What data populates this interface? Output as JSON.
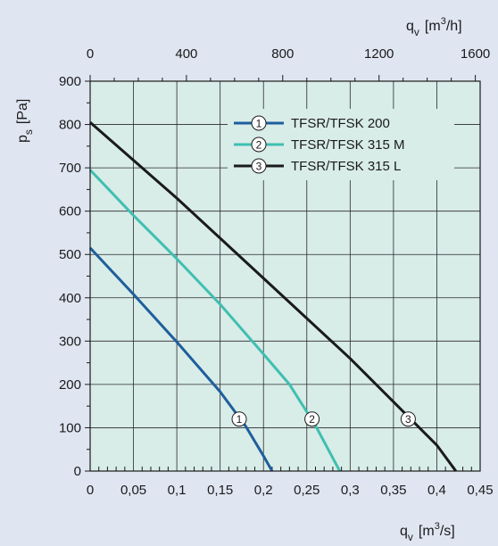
{
  "chart_data": {
    "type": "line",
    "x_bottom": {
      "label": "q",
      "label_sub": "v",
      "unit": "[m",
      "unit_sup": "3",
      "unit_tail": "/s]",
      "ticks": [
        0,
        0.05,
        0.1,
        0.15,
        0.2,
        0.25,
        0.3,
        0.35,
        0.4,
        0.45
      ],
      "tick_labels": [
        "0",
        "0,05",
        "0,1",
        "0,15",
        "0,2",
        "0,25",
        "0,3",
        "0,35",
        "0,4",
        "0,45"
      ],
      "range": [
        0,
        0.45
      ]
    },
    "x_top": {
      "label": "q",
      "label_sub": "v",
      "unit": "[m",
      "unit_sup": "3",
      "unit_tail": "/h]",
      "ticks": [
        0,
        400,
        800,
        1200,
        1600
      ],
      "tick_labels": [
        "0",
        "400",
        "800",
        "1200",
        "1600"
      ],
      "range": [
        0,
        1620
      ]
    },
    "y": {
      "label": "p",
      "label_sub": "s",
      "unit": "[Pa]",
      "ticks": [
        0,
        100,
        200,
        300,
        400,
        500,
        600,
        700,
        800,
        900
      ],
      "tick_labels": [
        "0",
        "100",
        "200",
        "300",
        "400",
        "500",
        "600",
        "700",
        "800",
        "900"
      ],
      "range": [
        0,
        900
      ]
    },
    "grid": true,
    "legend_position": "top-right",
    "series": [
      {
        "id": "1",
        "name": "TFSR/TFSK 200",
        "color": "#1f5e9c",
        "marker_label": "1",
        "marker_at": [
          0.172,
          120
        ],
        "points": [
          [
            0,
            515
          ],
          [
            0.05,
            408
          ],
          [
            0.1,
            298
          ],
          [
            0.15,
            183
          ],
          [
            0.18,
            102
          ],
          [
            0.2,
            35
          ],
          [
            0.21,
            0
          ]
        ]
      },
      {
        "id": "2",
        "name": "TFSR/TFSK 315 M",
        "color": "#3fbfb0",
        "marker_label": "2",
        "marker_at": [
          0.256,
          120
        ],
        "points": [
          [
            0,
            695
          ],
          [
            0.05,
            590
          ],
          [
            0.1,
            490
          ],
          [
            0.15,
            385
          ],
          [
            0.2,
            270
          ],
          [
            0.23,
            200
          ],
          [
            0.26,
            105
          ],
          [
            0.288,
            0
          ]
        ]
      },
      {
        "id": "3",
        "name": "TFSR/TFSK 315 L",
        "color": "#1a1a1a",
        "marker_label": "3",
        "marker_at": [
          0.367,
          120
        ],
        "points": [
          [
            0,
            805
          ],
          [
            0.1,
            630
          ],
          [
            0.2,
            445
          ],
          [
            0.3,
            260
          ],
          [
            0.4,
            60
          ],
          [
            0.422,
            0
          ]
        ]
      }
    ]
  }
}
